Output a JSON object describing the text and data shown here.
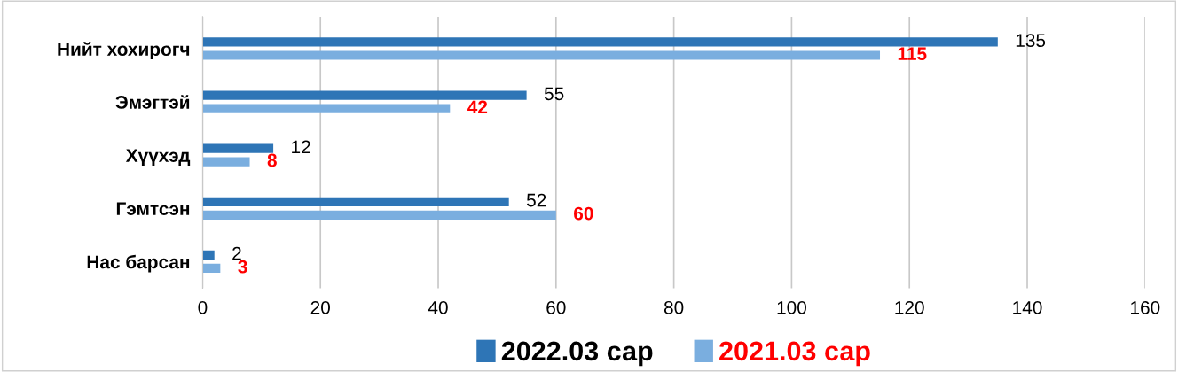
{
  "chart_data": {
    "type": "bar",
    "orientation": "horizontal",
    "categories": [
      "Нийт хохирогч",
      "Эмэгтэй",
      "Хүүхэд",
      "Гэмтсэн",
      "Нас барсан"
    ],
    "series": [
      {
        "name": "2022.03 сар",
        "color": "#2e75b6",
        "values": [
          135,
          55,
          12,
          52,
          2
        ]
      },
      {
        "name": "2021.03 сар",
        "color": "#7aaedf",
        "values": [
          115,
          42,
          8,
          60,
          3
        ]
      }
    ],
    "xlim": [
      0,
      160
    ],
    "xticks": [
      0,
      20,
      40,
      60,
      80,
      100,
      120,
      140,
      160
    ],
    "grid": "x",
    "legend": "bottom",
    "data_labels": true
  }
}
